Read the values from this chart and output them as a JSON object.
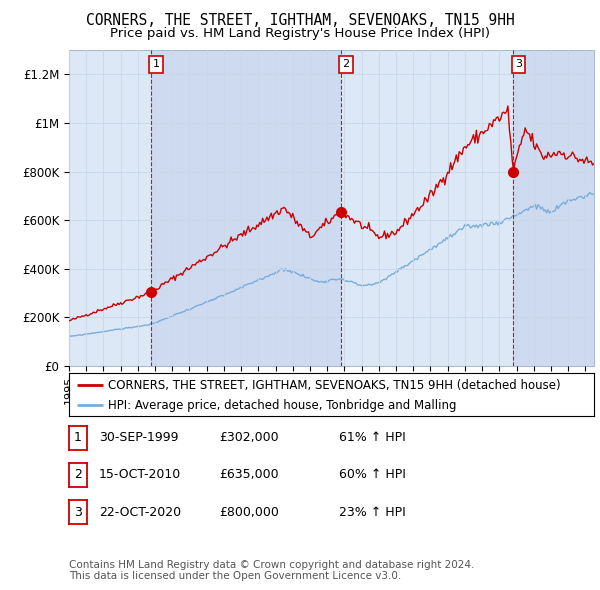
{
  "title": "CORNERS, THE STREET, IGHTHAM, SEVENOAKS, TN15 9HH",
  "subtitle": "Price paid vs. HM Land Registry's House Price Index (HPI)",
  "ylabel_ticks": [
    "£0",
    "£200K",
    "£400K",
    "£600K",
    "£800K",
    "£1M",
    "£1.2M"
  ],
  "ytick_values": [
    0,
    200000,
    400000,
    600000,
    800000,
    1000000,
    1200000
  ],
  "ylim": [
    0,
    1300000
  ],
  "xlim_start": 1995.0,
  "xlim_end": 2025.5,
  "sale_dates": [
    1999.75,
    2010.79,
    2020.81
  ],
  "sale_prices": [
    302000,
    635000,
    800000
  ],
  "sale_labels": [
    "1",
    "2",
    "3"
  ],
  "red_line_color": "#cc0000",
  "blue_line_color": "#7aaddb",
  "sale_marker_color": "#cc0000",
  "vline_color": "#cc0000",
  "grid_color": "#c8d8e8",
  "bg_color": "#ffffff",
  "plot_bg_color": "#ddeeff",
  "shade_color": "#ccddf0",
  "legend_label_red": "CORNERS, THE STREET, IGHTHAM, SEVENOAKS, TN15 9HH (detached house)",
  "legend_label_blue": "HPI: Average price, detached house, Tonbridge and Malling",
  "table_rows": [
    [
      "1",
      "30-SEP-1999",
      "£302,000",
      "61% ↑ HPI"
    ],
    [
      "2",
      "15-OCT-2010",
      "£635,000",
      "60% ↑ HPI"
    ],
    [
      "3",
      "22-OCT-2020",
      "£800,000",
      "23% ↑ HPI"
    ]
  ],
  "footer_text": "Contains HM Land Registry data © Crown copyright and database right 2024.\nThis data is licensed under the Open Government Licence v3.0.",
  "title_fontsize": 10.5,
  "subtitle_fontsize": 9.5,
  "tick_fontsize": 8.5,
  "legend_fontsize": 8.5,
  "table_fontsize": 9,
  "footer_fontsize": 7.5
}
